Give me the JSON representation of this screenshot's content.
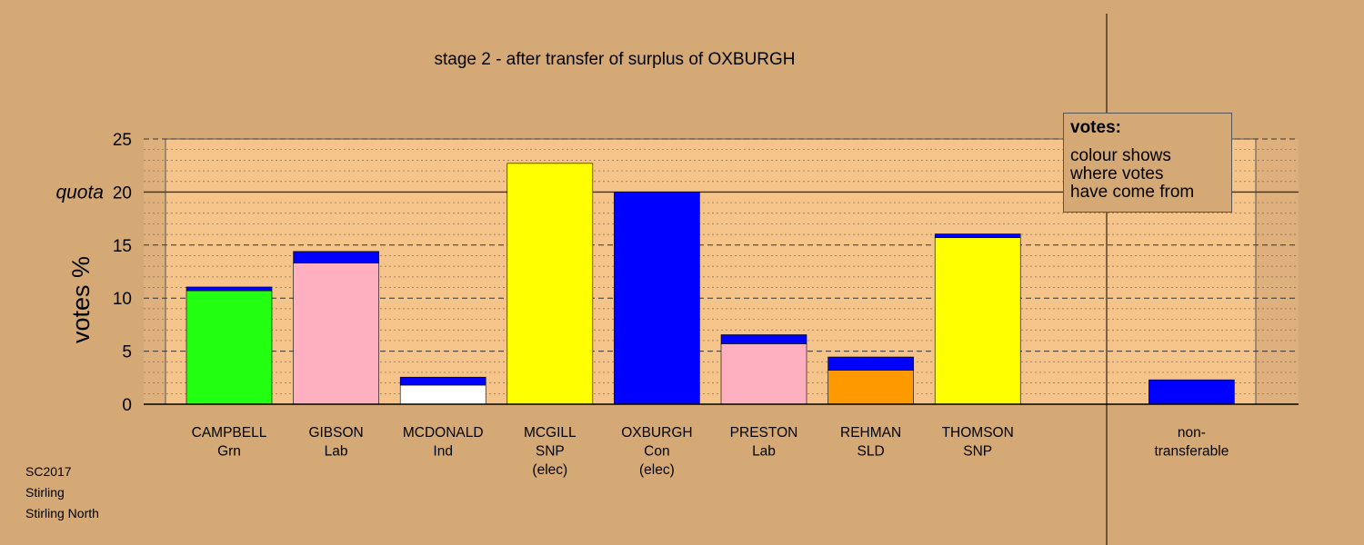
{
  "chart_data": {
    "type": "bar",
    "stacked": true,
    "title": "stage 2 - after transfer of surplus of OXBURGH",
    "ylabel": "votes %",
    "ylim": [
      0,
      25
    ],
    "yticks": [
      0,
      5,
      10,
      15,
      20,
      25
    ],
    "quota": {
      "label": "quota",
      "value": 20
    },
    "grid": true,
    "categories": [
      {
        "name": "CAMPBELL",
        "party": "Grn",
        "note": ""
      },
      {
        "name": "GIBSON",
        "party": "Lab",
        "note": ""
      },
      {
        "name": "MCDONALD",
        "party": "Ind",
        "note": ""
      },
      {
        "name": "MCGILL",
        "party": "SNP",
        "note": "(elec)"
      },
      {
        "name": "OXBURGH",
        "party": "Con",
        "note": "(elec)"
      },
      {
        "name": "PRESTON",
        "party": "Lab",
        "note": ""
      },
      {
        "name": "REHMAN",
        "party": "SLD",
        "note": ""
      },
      {
        "name": "THOMSON",
        "party": "SNP",
        "note": ""
      },
      {
        "name": "",
        "party": "",
        "note": ""
      },
      {
        "name": "non-",
        "party": "transferable",
        "note": ""
      }
    ],
    "bars": [
      {
        "segments": [
          {
            "value": 10.7,
            "color": "#22FF11"
          },
          {
            "value": 0.35,
            "color": "#0000FF"
          }
        ]
      },
      {
        "segments": [
          {
            "value": 13.3,
            "color": "#FFB0C0"
          },
          {
            "value": 1.1,
            "color": "#0000FF"
          }
        ]
      },
      {
        "segments": [
          {
            "value": 1.8,
            "color": "#FFFFFF"
          },
          {
            "value": 0.75,
            "color": "#0000FF"
          }
        ]
      },
      {
        "segments": [
          {
            "value": 22.7,
            "color": "#FFFF00"
          }
        ]
      },
      {
        "segments": [
          {
            "value": 20.0,
            "color": "#0000FF"
          }
        ]
      },
      {
        "segments": [
          {
            "value": 5.7,
            "color": "#FFB0C0"
          },
          {
            "value": 0.85,
            "color": "#0000FF"
          }
        ]
      },
      {
        "segments": [
          {
            "value": 3.2,
            "color": "#FF9900"
          },
          {
            "value": 1.25,
            "color": "#0000FF"
          }
        ]
      },
      {
        "segments": [
          {
            "value": 15.7,
            "color": "#FFFF00"
          },
          {
            "value": 0.35,
            "color": "#0000FF"
          }
        ]
      },
      {
        "segments": []
      },
      {
        "segments": [
          {
            "value": 2.3,
            "color": "#0000FF"
          }
        ]
      }
    ],
    "colors": {
      "background": "#D4A976",
      "plot_area": "#F5C48A",
      "out_of_panel": "#DDB07E"
    }
  },
  "legend": {
    "title": "votes:",
    "lines": [
      "colour shows",
      "where votes",
      "have come from"
    ]
  },
  "footer": {
    "lines": [
      "SC2017",
      "Stirling",
      "Stirling North"
    ]
  }
}
